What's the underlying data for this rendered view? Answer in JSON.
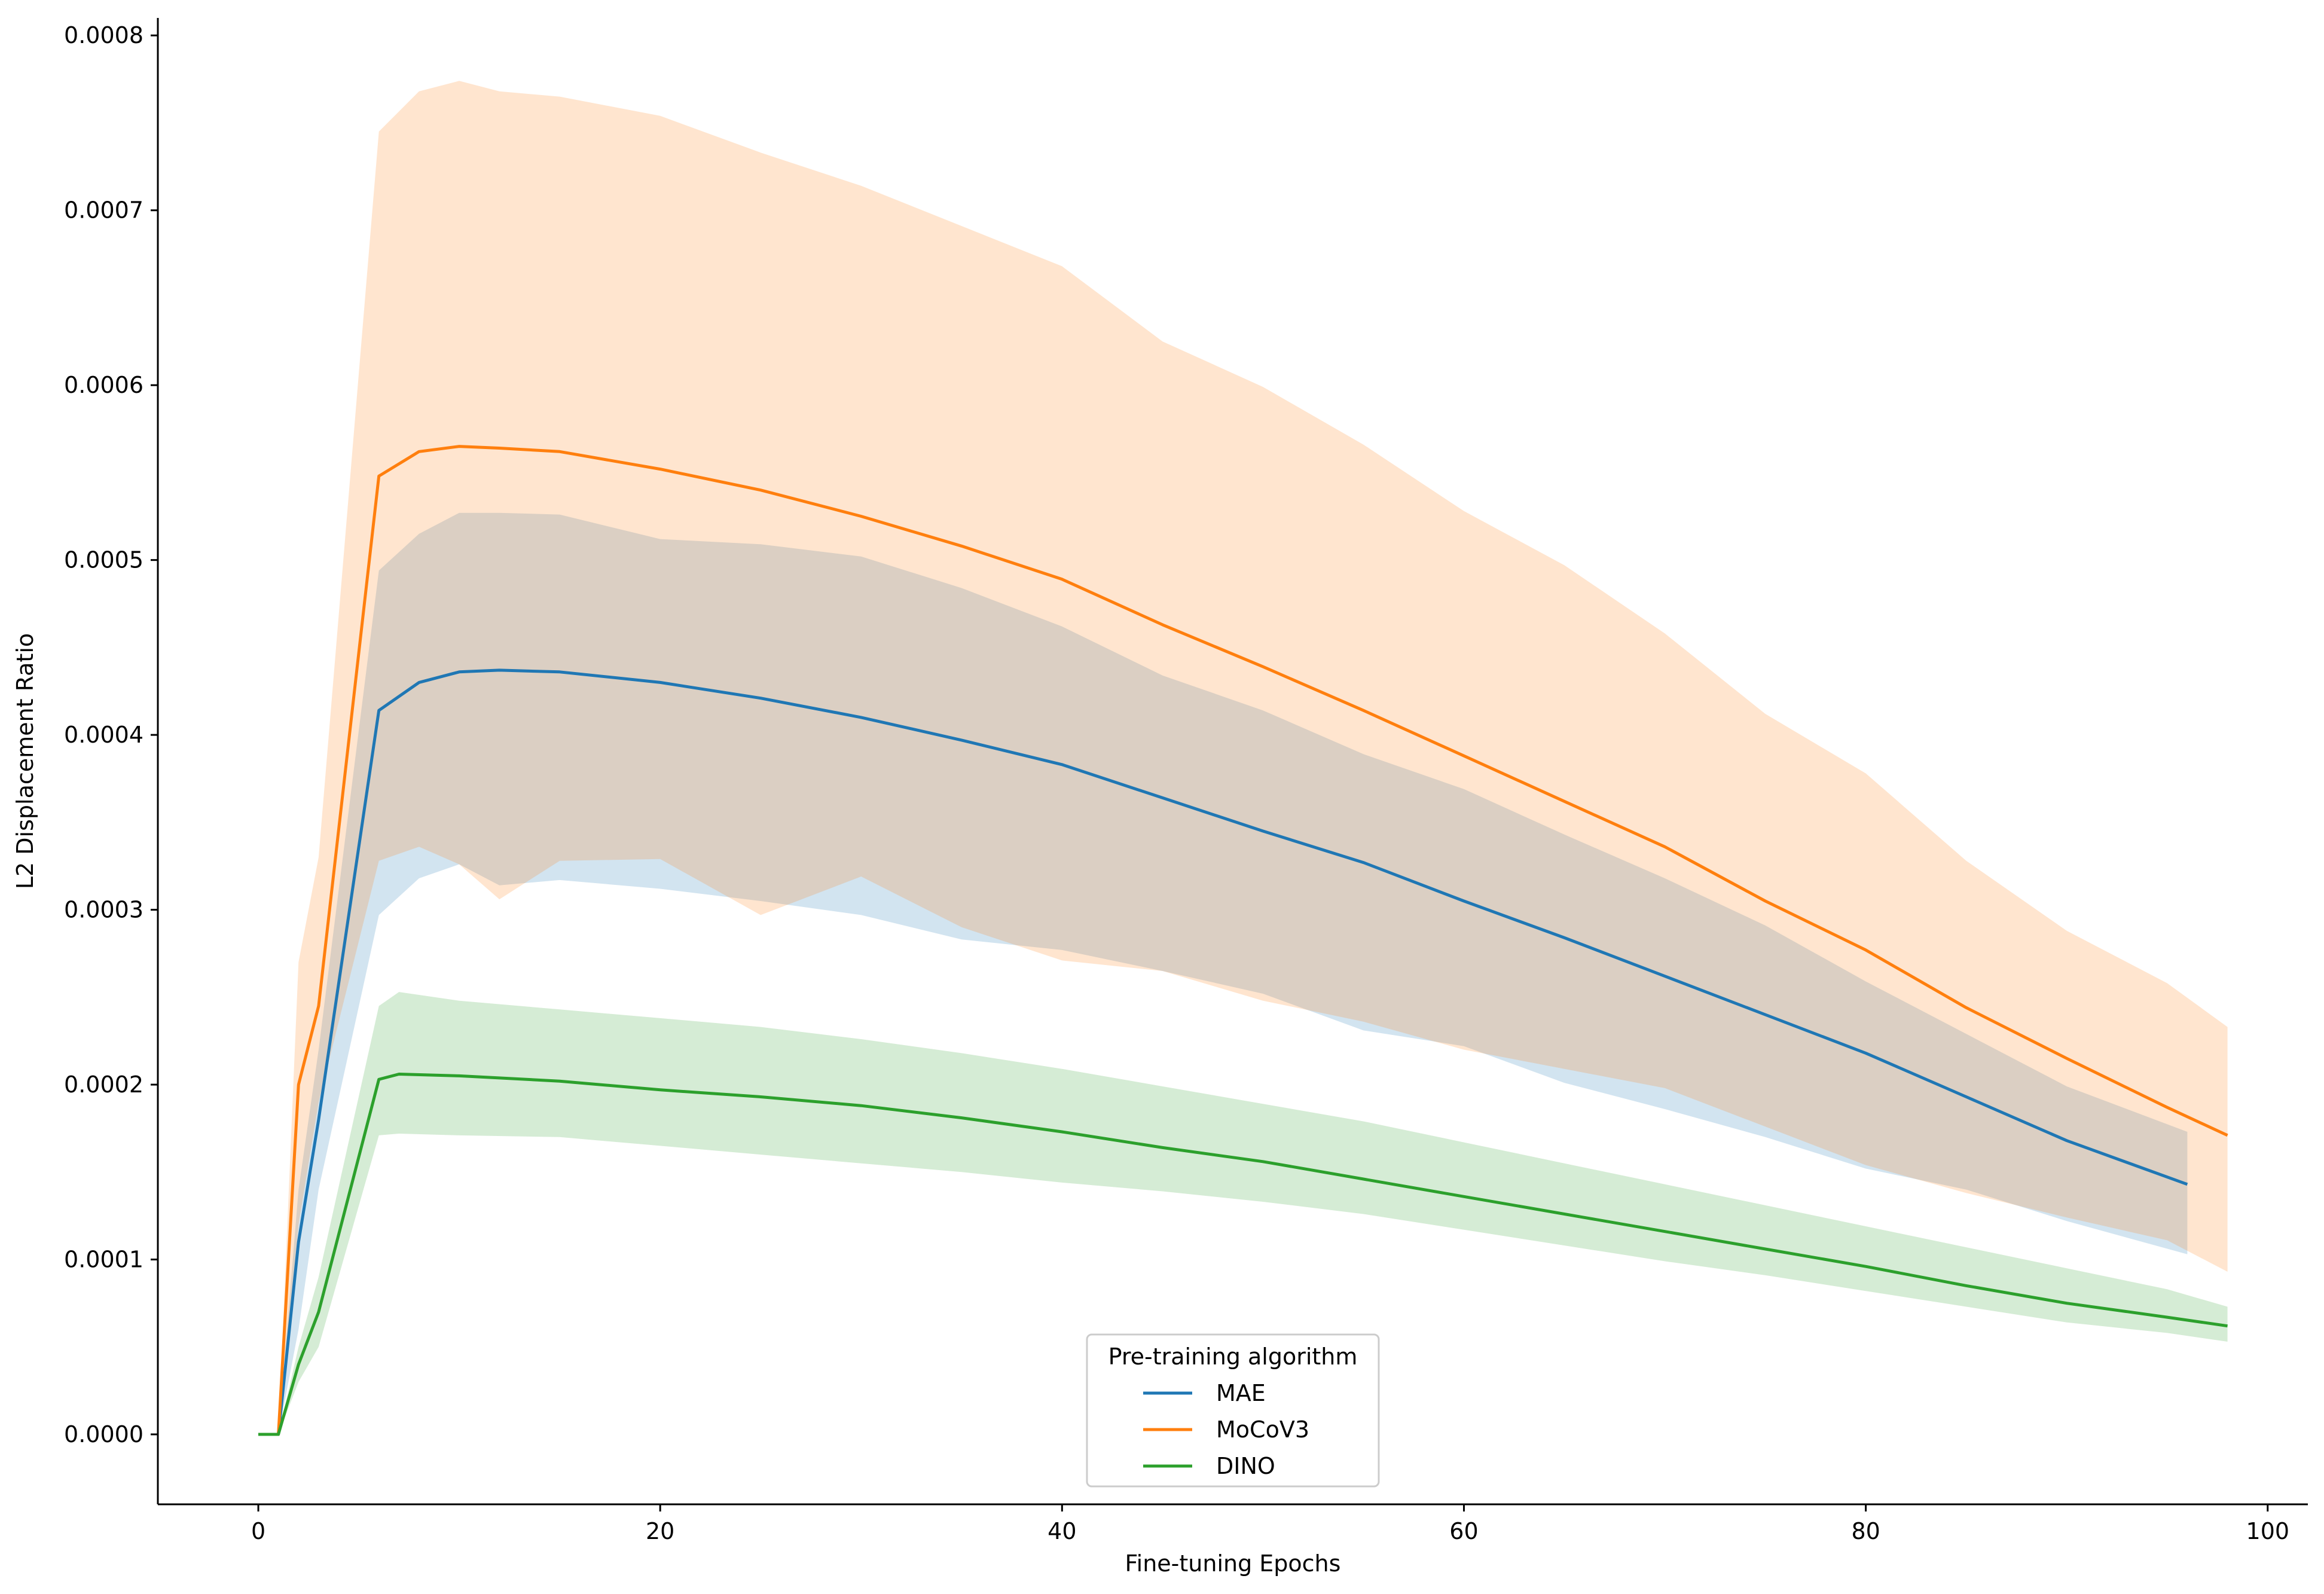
{
  "chart_data": {
    "type": "line",
    "title": "",
    "xlabel": "Fine-tuning Epochs",
    "ylabel": "L2 Displacement Ratio",
    "xlim": [
      -5,
      102
    ],
    "ylim": [
      -4e-05,
      0.00081
    ],
    "xticks": [
      0,
      20,
      40,
      60,
      80,
      100
    ],
    "yticks": [
      0.0,
      0.0001,
      0.0002,
      0.0003,
      0.0004,
      0.0005,
      0.0006,
      0.0007,
      0.0008
    ],
    "xtick_labels": [
      "0",
      "20",
      "40",
      "60",
      "80",
      "100"
    ],
    "ytick_labels": [
      "0.0000",
      "0.0001",
      "0.0002",
      "0.0003",
      "0.0004",
      "0.0005",
      "0.0006",
      "0.0007",
      "0.0008"
    ],
    "grid": false,
    "legend": {
      "title": "Pre-training algorithm",
      "placement": "bottom-center"
    },
    "series": [
      {
        "name": "MAE",
        "color": "#1f77b4",
        "x": [
          0,
          1,
          2,
          3,
          6,
          8,
          10,
          12,
          15,
          20,
          25,
          30,
          35,
          40,
          45,
          50,
          55,
          60,
          65,
          70,
          75,
          80,
          85,
          90,
          96
        ],
        "y": [
          0.0,
          0.0,
          0.00011,
          0.00018,
          0.000414,
          0.00043,
          0.000436,
          0.000437,
          0.000436,
          0.00043,
          0.000421,
          0.00041,
          0.000397,
          0.000383,
          0.000364,
          0.000345,
          0.000327,
          0.000305,
          0.000284,
          0.000262,
          0.00024,
          0.000218,
          0.000193,
          0.000168,
          0.000143
        ],
        "lower": [
          0.0,
          0.0,
          6e-05,
          0.00014,
          0.000297,
          0.000318,
          0.000326,
          0.000314,
          0.000317,
          0.000312,
          0.000305,
          0.000297,
          0.000283,
          0.000277,
          0.000265,
          0.000252,
          0.000231,
          0.000222,
          0.000201,
          0.000186,
          0.00017,
          0.000152,
          0.00014,
          0.000122,
          0.000103
        ],
        "upper": [
          0.0,
          0.0,
          0.00014,
          0.00022,
          0.000494,
          0.000515,
          0.000527,
          0.000527,
          0.000526,
          0.000512,
          0.000509,
          0.000502,
          0.000484,
          0.000462,
          0.000434,
          0.000414,
          0.000389,
          0.000369,
          0.000343,
          0.000318,
          0.000291,
          0.000259,
          0.000229,
          0.000199,
          0.000173
        ]
      },
      {
        "name": "MoCoV3",
        "color": "#ff7f0e",
        "x": [
          0,
          1,
          2,
          3,
          6,
          8,
          10,
          12,
          15,
          20,
          25,
          30,
          35,
          40,
          45,
          50,
          55,
          60,
          65,
          70,
          75,
          80,
          85,
          90,
          95,
          98
        ],
        "y": [
          0.0,
          0.0,
          0.0002,
          0.000245,
          0.000548,
          0.000562,
          0.000565,
          0.000564,
          0.000562,
          0.000552,
          0.00054,
          0.000525,
          0.000508,
          0.000489,
          0.000463,
          0.000439,
          0.000414,
          0.000388,
          0.000362,
          0.000336,
          0.000305,
          0.000277,
          0.000244,
          0.000215,
          0.000187,
          0.000171
        ],
        "lower": [
          0.0,
          0.0,
          0.00012,
          0.00019,
          0.000328,
          0.000336,
          0.000326,
          0.000306,
          0.000328,
          0.000329,
          0.000297,
          0.000319,
          0.00029,
          0.000271,
          0.000265,
          0.000248,
          0.000236,
          0.00022,
          0.000209,
          0.000198,
          0.000176,
          0.000154,
          0.000138,
          0.000124,
          0.000111,
          9.3e-05
        ],
        "upper": [
          0.0,
          0.0,
          0.00027,
          0.00033,
          0.000745,
          0.000768,
          0.000774,
          0.000768,
          0.000765,
          0.000754,
          0.000733,
          0.000714,
          0.000691,
          0.000668,
          0.000625,
          0.000599,
          0.000566,
          0.000528,
          0.000497,
          0.000458,
          0.000412,
          0.000378,
          0.000328,
          0.000288,
          0.000258,
          0.000233
        ]
      },
      {
        "name": "DINO",
        "color": "#2ca02c",
        "x": [
          0,
          1,
          2,
          3,
          6,
          7,
          10,
          15,
          20,
          25,
          30,
          35,
          40,
          45,
          50,
          55,
          60,
          65,
          70,
          75,
          80,
          85,
          90,
          95,
          98
        ],
        "y": [
          0.0,
          0.0,
          4e-05,
          7e-05,
          0.000203,
          0.000206,
          0.000205,
          0.000202,
          0.000197,
          0.000193,
          0.000188,
          0.000181,
          0.000173,
          0.000164,
          0.000156,
          0.000146,
          0.000136,
          0.000126,
          0.000116,
          0.000106,
          9.6e-05,
          8.5e-05,
          7.5e-05,
          6.7e-05,
          6.2e-05
        ],
        "lower": [
          0.0,
          0.0,
          3e-05,
          5e-05,
          0.000171,
          0.000172,
          0.000171,
          0.00017,
          0.000165,
          0.00016,
          0.000155,
          0.00015,
          0.000144,
          0.000139,
          0.000133,
          0.000126,
          0.000117,
          0.000108,
          9.9e-05,
          9.1e-05,
          8.2e-05,
          7.3e-05,
          6.4e-05,
          5.8e-05,
          5.3e-05
        ],
        "upper": [
          0.0,
          0.0,
          5e-05,
          9e-05,
          0.000245,
          0.000253,
          0.000248,
          0.000243,
          0.000238,
          0.000233,
          0.000226,
          0.000218,
          0.000209,
          0.000199,
          0.000189,
          0.000179,
          0.000167,
          0.000155,
          0.000143,
          0.000131,
          0.000119,
          0.000107,
          9.5e-05,
          8.3e-05,
          7.3e-05
        ]
      }
    ]
  }
}
